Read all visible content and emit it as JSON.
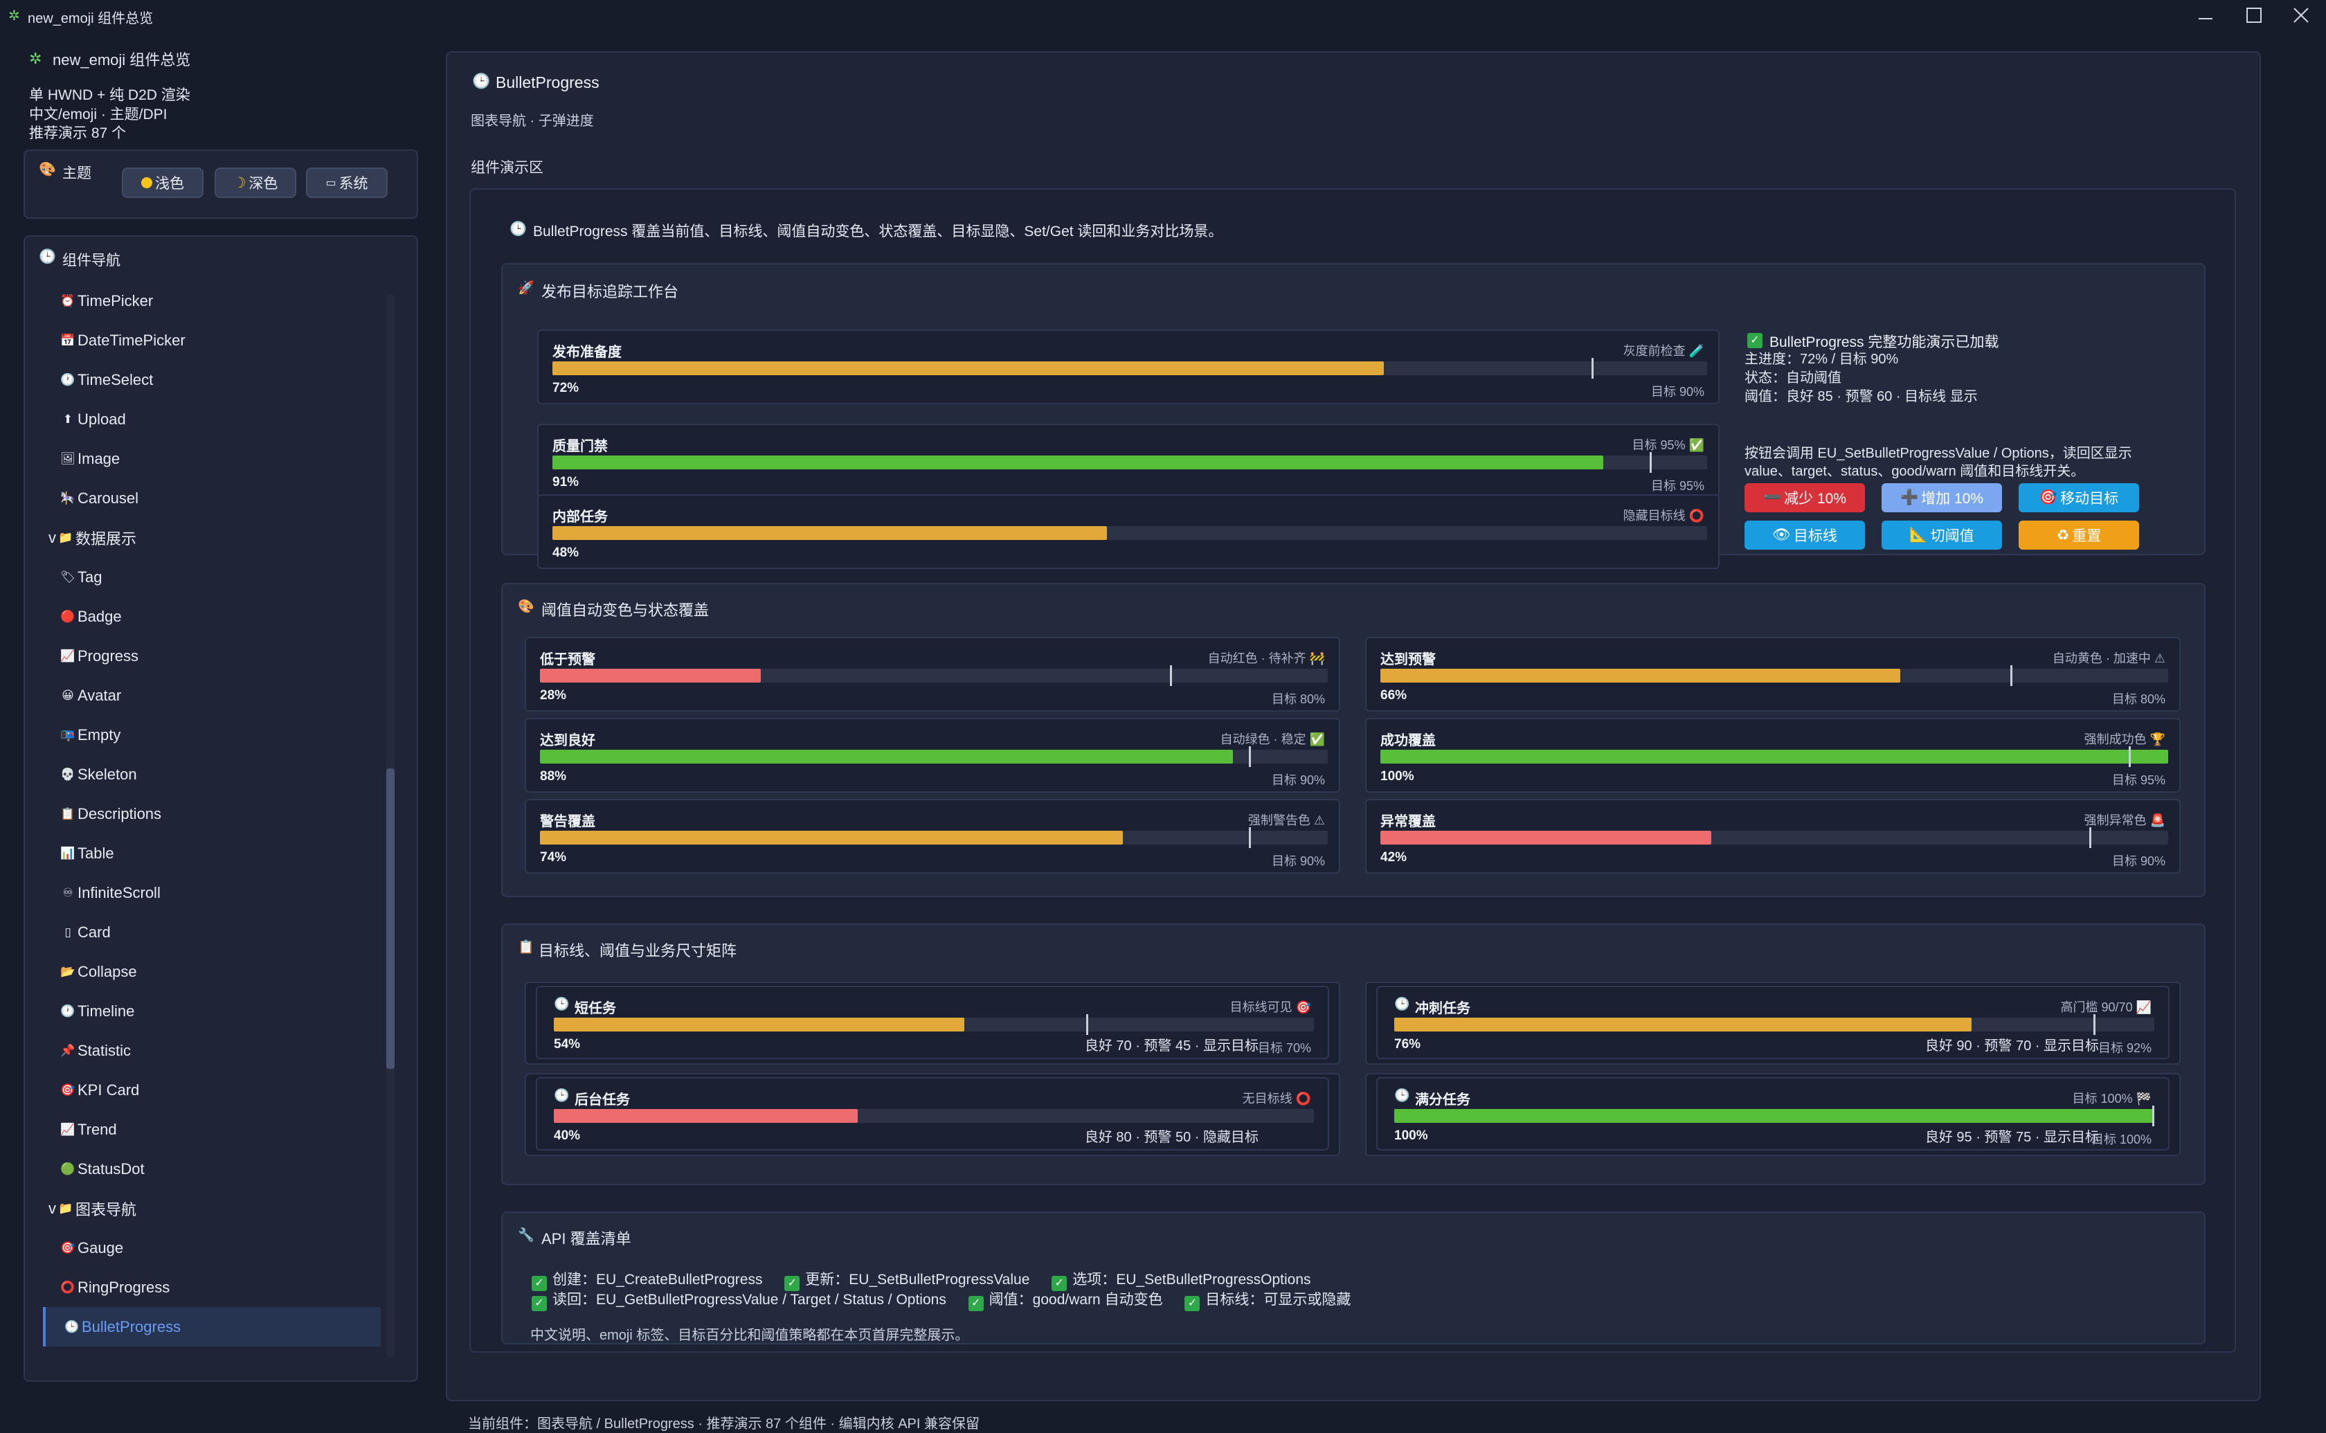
{
  "window": {
    "title": "new_emoji 组件总览",
    "icon": "sparkle-icon"
  },
  "sidebar": {
    "app_name": "new_emoji 组件总览",
    "info": [
      "单 HWND + 纯 D2D 渲染",
      "中文/emoji · 主题/DPI",
      "推荐演示 87 个"
    ],
    "theme": {
      "title": "主题",
      "buttons": [
        "浅色",
        "深色",
        "系统"
      ]
    },
    "nav": {
      "title": "组件导航",
      "items": [
        {
          "icon": "⏰",
          "label": "TimePicker"
        },
        {
          "icon": "📅",
          "label": "DateTimePicker"
        },
        {
          "icon": "🕐",
          "label": "TimeSelect"
        },
        {
          "icon": "⬆",
          "label": "Upload"
        },
        {
          "icon": "🖼",
          "label": "Image"
        },
        {
          "icon": "🎠",
          "label": "Carousel"
        },
        {
          "icon": "📁",
          "label": "数据展示",
          "group": true
        },
        {
          "icon": "🏷",
          "label": "Tag"
        },
        {
          "icon": "🔴",
          "label": "Badge"
        },
        {
          "icon": "📈",
          "label": "Progress"
        },
        {
          "icon": "😀",
          "label": "Avatar"
        },
        {
          "icon": "📭",
          "label": "Empty"
        },
        {
          "icon": "💀",
          "label": "Skeleton"
        },
        {
          "icon": "📋",
          "label": "Descriptions"
        },
        {
          "icon": "📊",
          "label": "Table"
        },
        {
          "icon": "♾",
          "label": "InfiniteScroll"
        },
        {
          "icon": "▯",
          "label": "Card"
        },
        {
          "icon": "📂",
          "label": "Collapse"
        },
        {
          "icon": "🕐",
          "label": "Timeline"
        },
        {
          "icon": "📌",
          "label": "Statistic"
        },
        {
          "icon": "🎯",
          "label": "KPI Card"
        },
        {
          "icon": "📈",
          "label": "Trend"
        },
        {
          "icon": "🟢",
          "label": "StatusDot"
        },
        {
          "icon": "📁",
          "label": "图表导航",
          "group": true
        },
        {
          "icon": "🎯",
          "label": "Gauge"
        },
        {
          "icon": "⭕",
          "label": "RingProgress"
        },
        {
          "icon": "🕒",
          "label": "BulletProgress",
          "active": true
        }
      ]
    }
  },
  "main": {
    "title": "BulletProgress",
    "subtitle": "图表导航 · 子弹进度",
    "demo_area_label": "组件演示区",
    "intro": "BulletProgress 覆盖当前值、目标线、阈值自动变色、状态覆盖、目标显隐、Set/Get 读回和业务对比场景。",
    "workbench": {
      "title": "发布目标追踪工作台",
      "bullets": [
        {
          "label": "发布准备度",
          "right": "灰度前检查 🧪",
          "pct": "72%",
          "target": "目标 90%",
          "value": 72,
          "target_value": 90,
          "color": "#e3a83a"
        },
        {
          "label": "质量门禁",
          "right": "目标 95% ✅",
          "pct": "91%",
          "target": "目标 95%",
          "value": 91,
          "target_value": 95,
          "color": "#58bf3a"
        },
        {
          "label": "内部任务",
          "right": "隐藏目标线 ⭕",
          "pct": "48%",
          "target": "",
          "value": 48,
          "color": "#e3a83a"
        }
      ],
      "status": {
        "heading": "BulletProgress 完整功能演示已加载",
        "lines": [
          "主进度：72% / 目标 90%",
          "状态：自动阈值",
          "阈值：良好 85 · 预警 60 · 目标线 显示"
        ]
      },
      "hint": "按钮会调用 EU_SetBulletProgressValue / Options，读回区显示 value、target、status、good/warn 阈值和目标线开关。",
      "buttons": [
        {
          "label": "减少 10%",
          "icon": "➖",
          "color": "#d9313a"
        },
        {
          "label": "增加 10%",
          "icon": "➕",
          "color": "#7aa7ef"
        },
        {
          "label": "移动目标",
          "icon": "🎯",
          "color": "#1a9de0"
        },
        {
          "label": "目标线",
          "icon": "👁",
          "color": "#1a9de0"
        },
        {
          "label": "切阈值",
          "icon": "📐",
          "color": "#1a9de0"
        },
        {
          "label": "重置",
          "icon": "♻",
          "color": "#f0a018"
        }
      ]
    },
    "threshold": {
      "title": "阈值自动变色与状态覆盖",
      "bullets": [
        {
          "label": "低于预警",
          "right": "自动红色 · 待补齐 🚧",
          "pct": "28%",
          "target": "目标 80%",
          "value": 28,
          "target_value": 80,
          "color": "#ee6b6e"
        },
        {
          "label": "达到预警",
          "right": "自动黄色 · 加速中 ⚠",
          "pct": "66%",
          "target": "目标 80%",
          "value": 66,
          "target_value": 80,
          "color": "#e3a83a"
        },
        {
          "label": "达到良好",
          "right": "自动绿色 · 稳定 ✅",
          "pct": "88%",
          "target": "目标 90%",
          "value": 88,
          "target_value": 90,
          "color": "#58bf3a"
        },
        {
          "label": "成功覆盖",
          "right": "强制成功色 🏆",
          "pct": "100%",
          "target": "目标 95%",
          "value": 100,
          "target_value": 95,
          "color": "#58bf3a"
        },
        {
          "label": "警告覆盖",
          "right": "强制警告色 ⚠",
          "pct": "74%",
          "target": "目标 90%",
          "value": 74,
          "target_value": 90,
          "color": "#e3a83a"
        },
        {
          "label": "异常覆盖",
          "right": "强制异常色 🚨",
          "pct": "42%",
          "target": "目标 90%",
          "value": 42,
          "target_value": 90,
          "color": "#ee6b6e"
        }
      ]
    },
    "matrix": {
      "title": "目标线、阈值与业务尺寸矩阵",
      "bullets": [
        {
          "label": "短任务",
          "right": "目标线可见 🎯",
          "pct": "54%",
          "rule": "良好 70 · 预警 45 · 显示目标",
          "target": "目标 70%",
          "value": 54,
          "target_value": 70,
          "color": "#e3a83a"
        },
        {
          "label": "冲刺任务",
          "right": "高门槛 90/70 📈",
          "pct": "76%",
          "rule": "良好 90 · 预警 70 · 显示目标",
          "target": "目标 92%",
          "value": 76,
          "target_value": 92,
          "color": "#e3a83a"
        },
        {
          "label": "后台任务",
          "right": "无目标线 ⭕",
          "pct": "40%",
          "rule": "良好 80 · 预警 50 · 隐藏目标",
          "target": "",
          "value": 40,
          "color": "#ee6b6e"
        },
        {
          "label": "满分任务",
          "right": "目标 100% 🏁",
          "pct": "100%",
          "rule": "良好 95 · 预警 75 · 显示目标",
          "target": "目标 100%",
          "value": 100,
          "target_value": 100,
          "color": "#58bf3a"
        }
      ]
    },
    "api": {
      "title": "API 覆盖清单",
      "row1": [
        "创建：EU_CreateBulletProgress",
        "更新：EU_SetBulletProgressValue",
        "选项：EU_SetBulletProgressOptions"
      ],
      "row2": [
        "读回：EU_GetBulletProgressValue / Target / Status / Options",
        "阈值：good/warn 自动变色",
        "目标线：可显示或隐藏"
      ],
      "note": "中文说明、emoji 标签、目标百分比和阈值策略都在本页首屏完整展示。"
    }
  },
  "status_bar": "当前组件：图表导航 / BulletProgress · 推荐演示 87 个组件 · 编辑内核 API 兼容保留"
}
